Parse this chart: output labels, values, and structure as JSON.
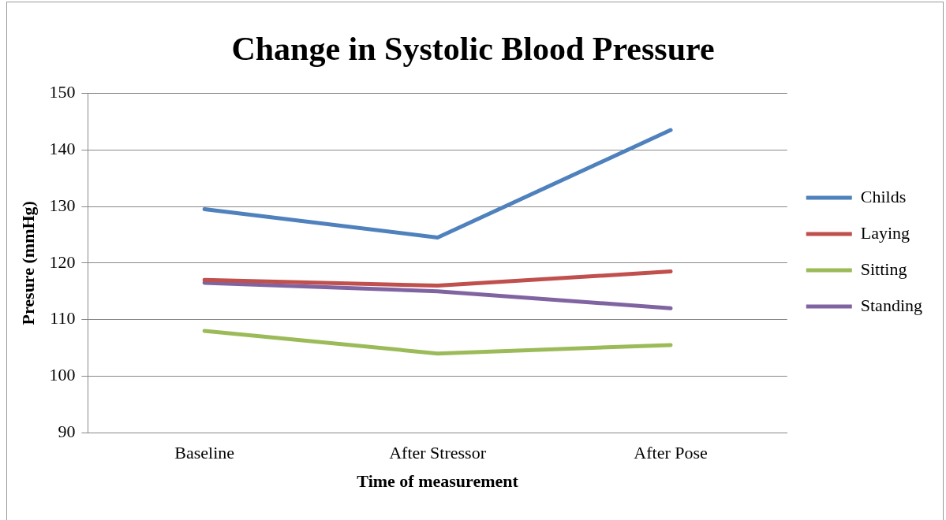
{
  "chart_data": {
    "type": "line",
    "title": "Change in Systolic Blood Pressure",
    "xlabel": "Time of measurement",
    "ylabel": "Presure (mmHg)",
    "categories": [
      "Baseline",
      "After Stressor",
      "After Pose"
    ],
    "series": [
      {
        "name": "Childs",
        "color": "#4f81bd",
        "values": [
          129.5,
          124.5,
          143.5
        ]
      },
      {
        "name": "Laying",
        "color": "#c0504d",
        "values": [
          117,
          116,
          118.5
        ]
      },
      {
        "name": "Sitting",
        "color": "#9bbb59",
        "values": [
          108,
          104,
          105.5
        ]
      },
      {
        "name": "Standing",
        "color": "#8064a2",
        "values": [
          116.5,
          115,
          112
        ]
      }
    ],
    "ylim": [
      90,
      150
    ],
    "yticks": [
      90,
      100,
      110,
      120,
      130,
      140,
      150
    ],
    "grid": "y",
    "legend": "right",
    "marker": "none",
    "line_style": "solid"
  }
}
